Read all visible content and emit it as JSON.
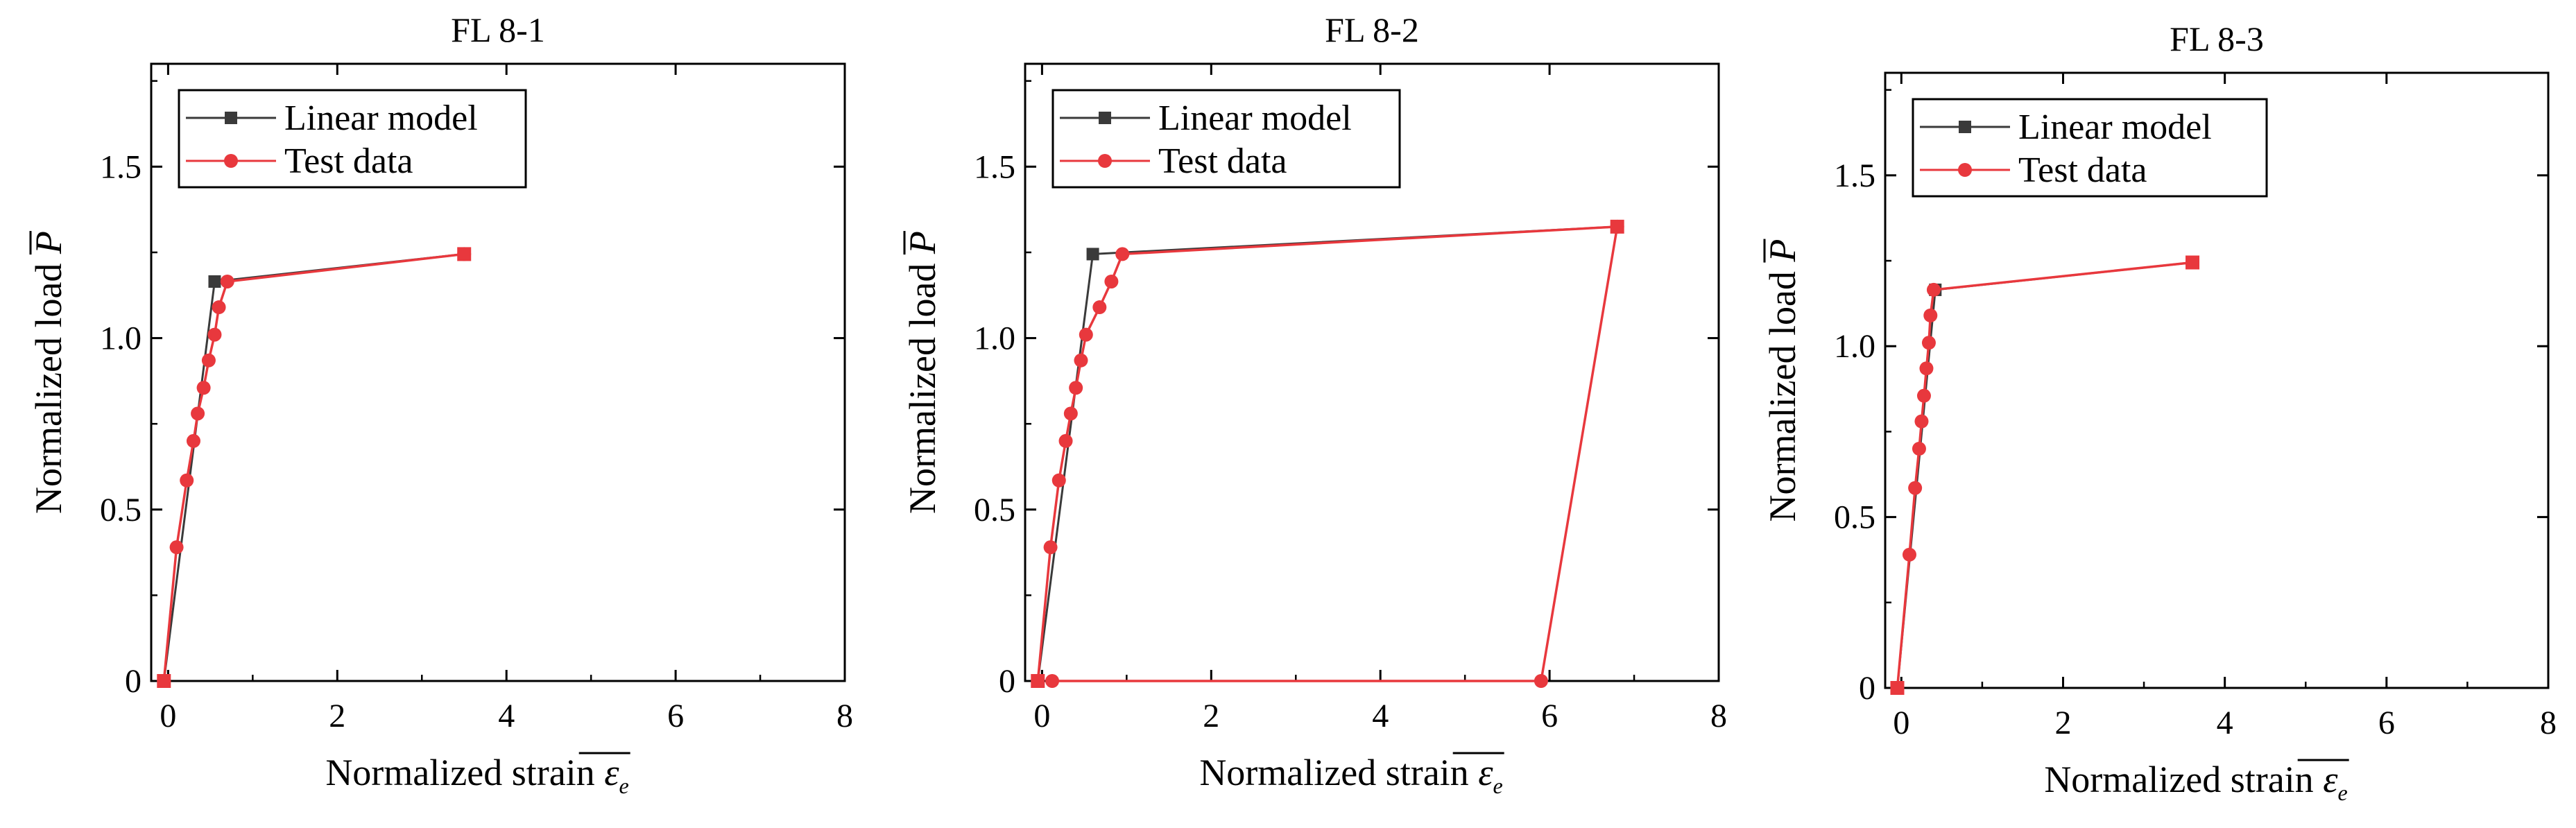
{
  "colors": {
    "linear_model": "#3a3a3a",
    "test_data": "#e8383d",
    "axis": "#000000",
    "background": "#ffffff"
  },
  "chart_data": [
    {
      "type": "line",
      "title": "FL 8-1",
      "xlabel": "Normalized strain",
      "xlabel_symbol": "ε",
      "xlabel_subscript": "e",
      "ylabel": "Normalized load",
      "ylabel_symbol": "P",
      "xlim": [
        -0.2,
        8
      ],
      "ylim": [
        0,
        1.8
      ],
      "xticks": [
        0,
        2,
        4,
        6,
        8
      ],
      "xtick_labels": [
        "0",
        "2",
        "4",
        "6",
        "8"
      ],
      "yticks": [
        0,
        0.5,
        1.0,
        1.5
      ],
      "ytick_labels": [
        "0",
        "0.5",
        "1.0",
        "1.5"
      ],
      "legend_position": "top-left",
      "series": [
        {
          "name": "Linear model",
          "marker": "square",
          "x": [
            -0.05,
            0.55,
            3.5
          ],
          "y": [
            0,
            1.165,
            1.245
          ]
        },
        {
          "name": "Test data",
          "marker": "circle",
          "x": [
            -0.05,
            0.1,
            0.22,
            0.3,
            0.35,
            0.42,
            0.48,
            0.55,
            0.6,
            0.7,
            3.5
          ],
          "y": [
            0,
            0.39,
            0.585,
            0.7,
            0.78,
            0.855,
            0.935,
            1.01,
            1.09,
            1.165,
            1.245
          ]
        }
      ]
    },
    {
      "type": "line",
      "title": "FL 8-2",
      "xlabel": "Normalized strain",
      "xlabel_symbol": "ε",
      "xlabel_subscript": "e",
      "ylabel": "Normalized load",
      "ylabel_symbol": "P",
      "xlim": [
        -0.2,
        8
      ],
      "ylim": [
        0,
        1.8
      ],
      "xticks": [
        0,
        2,
        4,
        6,
        8
      ],
      "xtick_labels": [
        "0",
        "2",
        "4",
        "6",
        "8"
      ],
      "yticks": [
        0,
        0.5,
        1.0,
        1.5
      ],
      "ytick_labels": [
        "0",
        "0.5",
        "1.0",
        "1.5"
      ],
      "legend_position": "top-left",
      "series": [
        {
          "name": "Linear model",
          "marker": "square",
          "x": [
            -0.05,
            0.6,
            6.8
          ],
          "y": [
            0,
            1.245,
            1.325
          ]
        },
        {
          "name": "Test data",
          "marker": "circle",
          "x": [
            -0.05,
            0.1,
            0.2,
            0.28,
            0.34,
            0.4,
            0.46,
            0.52,
            0.68,
            0.82,
            0.95,
            6.8,
            5.9,
            0.12
          ],
          "y": [
            0,
            0.39,
            0.585,
            0.7,
            0.78,
            0.855,
            0.935,
            1.01,
            1.09,
            1.165,
            1.245,
            1.325,
            0,
            0
          ]
        }
      ]
    },
    {
      "type": "line",
      "title": "FL 8-3",
      "xlabel": "Normalized strain",
      "xlabel_symbol": "ε",
      "xlabel_subscript": "e",
      "ylabel": "Normalized load",
      "ylabel_symbol": "P",
      "xlim": [
        -0.2,
        8
      ],
      "ylim": [
        0,
        1.8
      ],
      "xticks": [
        0,
        2,
        4,
        6,
        8
      ],
      "xtick_labels": [
        "0",
        "2",
        "4",
        "6",
        "8"
      ],
      "yticks": [
        0,
        0.5,
        1.0,
        1.5
      ],
      "ytick_labels": [
        "0",
        "0.5",
        "1.0",
        "1.5"
      ],
      "legend_position": "top-left",
      "series": [
        {
          "name": "Linear model",
          "marker": "square",
          "x": [
            -0.05,
            0.42,
            3.6
          ],
          "y": [
            0,
            1.165,
            1.245
          ]
        },
        {
          "name": "Test data",
          "marker": "circle",
          "x": [
            -0.05,
            0.1,
            0.17,
            0.22,
            0.25,
            0.28,
            0.31,
            0.34,
            0.36,
            0.4,
            3.6
          ],
          "y": [
            0,
            0.39,
            0.585,
            0.7,
            0.78,
            0.855,
            0.935,
            1.01,
            1.09,
            1.165,
            1.245
          ]
        }
      ]
    }
  ]
}
